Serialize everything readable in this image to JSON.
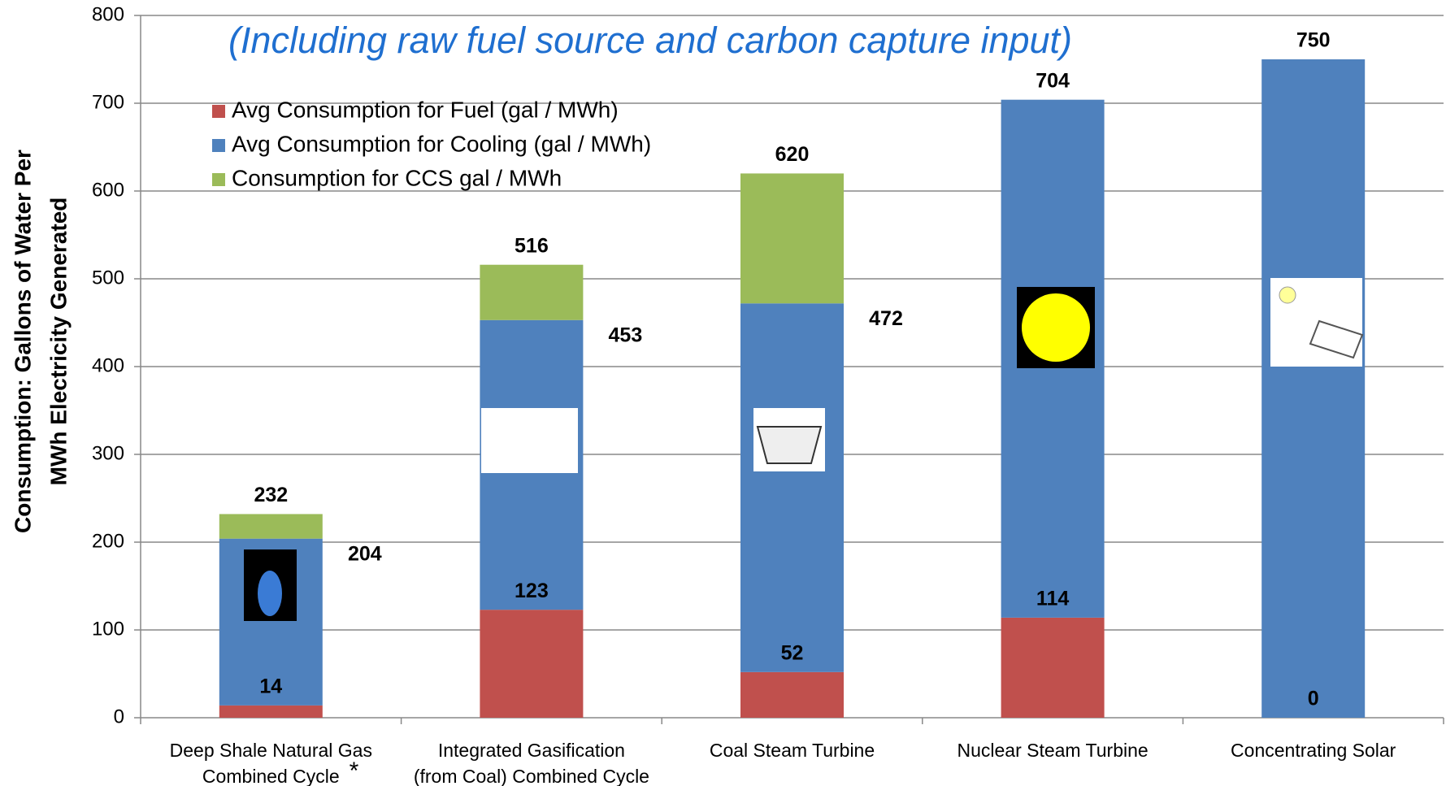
{
  "chart_data": {
    "type": "stacked_bar",
    "title": "(Including raw fuel source and carbon capture input)",
    "y_label": [
      "Consumption: Gallons of Water Per",
      "MWh Electricity Generated"
    ],
    "categories": [
      [
        "Deep Shale Natural Gas",
        "Combined Cycle"
      ],
      [
        "Integrated Gasification",
        "(from Coal) Combined Cycle"
      ],
      [
        "Coal Steam Turbine"
      ],
      [
        "Nuclear Steam Turbine"
      ],
      [
        "Concentrating Solar"
      ]
    ],
    "footnote_mark": "*",
    "series": [
      {
        "name": "Avg Consumption for Fuel (gal / MWh)",
        "color": "#c0504d",
        "values": [
          14,
          123,
          52,
          114,
          0
        ]
      },
      {
        "name": "Avg Consumption for Cooling (gal / MWh)",
        "color": "#4f81bd",
        "values": [
          190,
          330,
          420,
          590,
          750
        ]
      },
      {
        "name": "Consumption for CCS gal / MWh",
        "color": "#9bbb59",
        "values": [
          28,
          63,
          148,
          0,
          0
        ]
      }
    ],
    "data_labels": [
      [
        14,
        204,
        232
      ],
      [
        123,
        453,
        516
      ],
      [
        52,
        472,
        620
      ],
      [
        114,
        704
      ],
      [
        0,
        750
      ]
    ],
    "ylim": [
      0,
      800
    ],
    "yticks": [
      0,
      100,
      200,
      300,
      400,
      500,
      600,
      700,
      800
    ],
    "grid": true,
    "legend": "top-left"
  }
}
